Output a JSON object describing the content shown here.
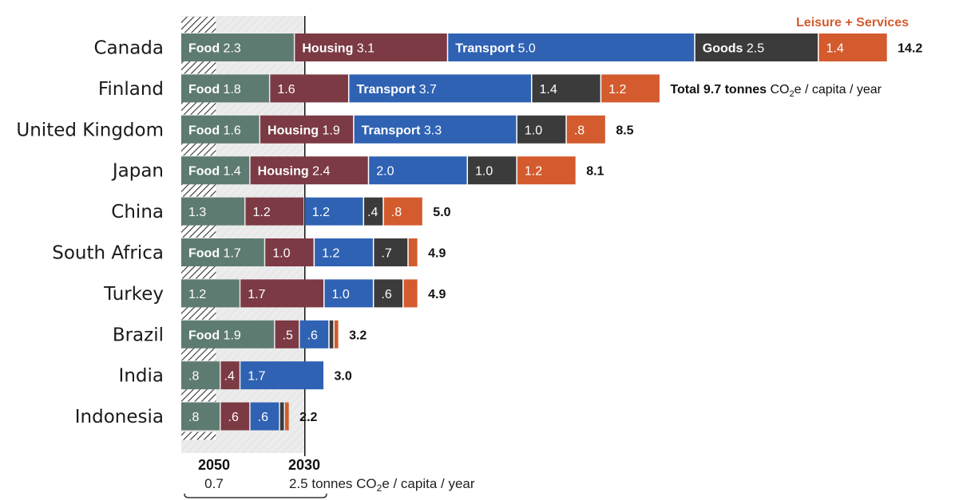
{
  "colors": {
    "Food": "#5e7b72",
    "Housing": "#7b3a44",
    "Transport": "#2f62b3",
    "Goods": "#3b3b3b",
    "Leisure + Services": "#d35b2e",
    "target_band": "#e8e8e8",
    "hatch": "#333333"
  },
  "legend_top": "Leisure + Services",
  "axis": {
    "year_2050": "2050",
    "value_2050": "0.7",
    "year_2030": "2030",
    "value_2030_text": "2.5 tonnes CO",
    "value_2030_sub": "2",
    "value_2030_rest": "e / capita / year"
  },
  "total_note": {
    "prefix": "Total ",
    "unit_bold": " tonnes",
    "unit_rest_a": " CO",
    "unit_sub": "2",
    "unit_rest_b": "e / capita / year"
  },
  "chart_data": {
    "type": "bar",
    "orientation": "horizontal",
    "stacked": true,
    "unit": "tonnes CO2e / capita / year",
    "categories": [
      "Food",
      "Housing",
      "Transport",
      "Goods",
      "Leisure + Services"
    ],
    "reference_lines": [
      {
        "label": "2050",
        "value": 0.7
      },
      {
        "label": "2030",
        "value": 2.5
      }
    ],
    "rows": [
      {
        "country": "Canada",
        "total": "14.2",
        "segments": [
          {
            "cat": "Food",
            "value": 2.3,
            "text": "2.3",
            "show_cat": true
          },
          {
            "cat": "Housing",
            "value": 3.1,
            "text": "3.1",
            "show_cat": true
          },
          {
            "cat": "Transport",
            "value": 5.0,
            "text": "5.0",
            "show_cat": true
          },
          {
            "cat": "Goods",
            "value": 2.5,
            "text": "2.5",
            "show_cat": true
          },
          {
            "cat": "Leisure + Services",
            "value": 1.4,
            "text": "1.4",
            "show_cat": false
          }
        ]
      },
      {
        "country": "Finland",
        "total": "9.7",
        "total_with_unit": true,
        "segments": [
          {
            "cat": "Food",
            "value": 1.8,
            "text": "1.8",
            "show_cat": true
          },
          {
            "cat": "Housing",
            "value": 1.6,
            "text": "1.6",
            "show_cat": false
          },
          {
            "cat": "Transport",
            "value": 3.7,
            "text": "3.7",
            "show_cat": true
          },
          {
            "cat": "Goods",
            "value": 1.4,
            "text": "1.4",
            "show_cat": false
          },
          {
            "cat": "Leisure + Services",
            "value": 1.2,
            "text": "1.2",
            "show_cat": false
          }
        ]
      },
      {
        "country": "United Kingdom",
        "total": "8.5",
        "segments": [
          {
            "cat": "Food",
            "value": 1.6,
            "text": "1.6",
            "show_cat": true
          },
          {
            "cat": "Housing",
            "value": 1.9,
            "text": "1.9",
            "show_cat": true
          },
          {
            "cat": "Transport",
            "value": 3.3,
            "text": "3.3",
            "show_cat": true
          },
          {
            "cat": "Goods",
            "value": 1.0,
            "text": "1.0",
            "show_cat": false
          },
          {
            "cat": "Leisure + Services",
            "value": 0.8,
            "text": ".8",
            "show_cat": false
          }
        ]
      },
      {
        "country": "Japan",
        "total": "8.1",
        "segments": [
          {
            "cat": "Food",
            "value": 1.4,
            "text": "1.4",
            "show_cat": true
          },
          {
            "cat": "Housing",
            "value": 2.4,
            "text": "2.4",
            "show_cat": true
          },
          {
            "cat": "Transport",
            "value": 2.0,
            "text": "2.0",
            "show_cat": false
          },
          {
            "cat": "Goods",
            "value": 1.0,
            "text": "1.0",
            "show_cat": false
          },
          {
            "cat": "Leisure + Services",
            "value": 1.2,
            "text": "1.2",
            "show_cat": false
          }
        ]
      },
      {
        "country": "China",
        "total": "5.0",
        "segments": [
          {
            "cat": "Food",
            "value": 1.3,
            "text": "1.3",
            "show_cat": false
          },
          {
            "cat": "Housing",
            "value": 1.2,
            "text": "1.2",
            "show_cat": false
          },
          {
            "cat": "Transport",
            "value": 1.2,
            "text": "1.2",
            "show_cat": false
          },
          {
            "cat": "Goods",
            "value": 0.4,
            "text": ".4",
            "show_cat": false
          },
          {
            "cat": "Leisure + Services",
            "value": 0.8,
            "text": ".8",
            "show_cat": false
          }
        ]
      },
      {
        "country": "South Africa",
        "total": "4.9",
        "segments": [
          {
            "cat": "Food",
            "value": 1.7,
            "text": "1.7",
            "show_cat": true
          },
          {
            "cat": "Housing",
            "value": 1.0,
            "text": "1.0",
            "show_cat": false
          },
          {
            "cat": "Transport",
            "value": 1.2,
            "text": "1.2",
            "show_cat": false
          },
          {
            "cat": "Goods",
            "value": 0.7,
            "text": ".7",
            "show_cat": false
          },
          {
            "cat": "Leisure + Services",
            "value": 0.2,
            "text": "",
            "show_cat": false
          }
        ]
      },
      {
        "country": "Turkey",
        "total": "4.9",
        "segments": [
          {
            "cat": "Food",
            "value": 1.2,
            "text": "1.2",
            "show_cat": false
          },
          {
            "cat": "Housing",
            "value": 1.7,
            "text": "1.7",
            "show_cat": false
          },
          {
            "cat": "Transport",
            "value": 1.0,
            "text": "1.0",
            "show_cat": false
          },
          {
            "cat": "Goods",
            "value": 0.6,
            "text": ".6",
            "show_cat": false
          },
          {
            "cat": "Leisure + Services",
            "value": 0.3,
            "text": "",
            "show_cat": false
          }
        ]
      },
      {
        "country": "Brazil",
        "total": "3.2",
        "segments": [
          {
            "cat": "Food",
            "value": 1.9,
            "text": "1.9",
            "show_cat": true
          },
          {
            "cat": "Housing",
            "value": 0.5,
            "text": ".5",
            "show_cat": false
          },
          {
            "cat": "Transport",
            "value": 0.6,
            "text": ".6",
            "show_cat": false
          },
          {
            "cat": "Goods",
            "value": 0.1,
            "text": "",
            "show_cat": false
          },
          {
            "cat": "Leisure + Services",
            "value": 0.1,
            "text": "",
            "show_cat": false
          }
        ]
      },
      {
        "country": "India",
        "total": "3.0",
        "segments": [
          {
            "cat": "Food",
            "value": 0.8,
            "text": ".8",
            "show_cat": false
          },
          {
            "cat": "Housing",
            "value": 0.4,
            "text": ".4",
            "show_cat": false
          },
          {
            "cat": "Transport",
            "value": 1.7,
            "text": "1.7",
            "show_cat": false
          }
        ]
      },
      {
        "country": "Indonesia",
        "total": "2.2",
        "segments": [
          {
            "cat": "Food",
            "value": 0.8,
            "text": ".8",
            "show_cat": false
          },
          {
            "cat": "Housing",
            "value": 0.6,
            "text": ".6",
            "show_cat": false
          },
          {
            "cat": "Transport",
            "value": 0.6,
            "text": ".6",
            "show_cat": false
          },
          {
            "cat": "Goods",
            "value": 0.1,
            "text": "",
            "show_cat": false
          },
          {
            "cat": "Leisure + Services",
            "value": 0.1,
            "text": "",
            "show_cat": false
          }
        ]
      }
    ]
  }
}
